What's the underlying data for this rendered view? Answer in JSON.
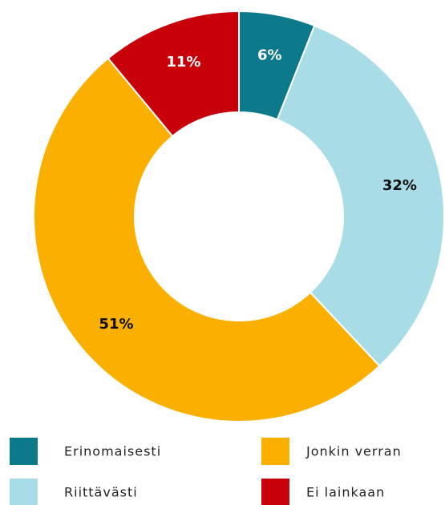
{
  "chart_data": {
    "type": "donut",
    "categories": [
      "Erinomaisesti",
      "Riittävästi",
      "Jonkin verran",
      "Ei lainkaan"
    ],
    "values": [
      6,
      32,
      51,
      11
    ],
    "value_labels": [
      "6%",
      "32%",
      "51%",
      "11%"
    ],
    "colors": [
      "#0d7a8c",
      "#a8dde8",
      "#fbb000",
      "#c8000a"
    ]
  }
}
